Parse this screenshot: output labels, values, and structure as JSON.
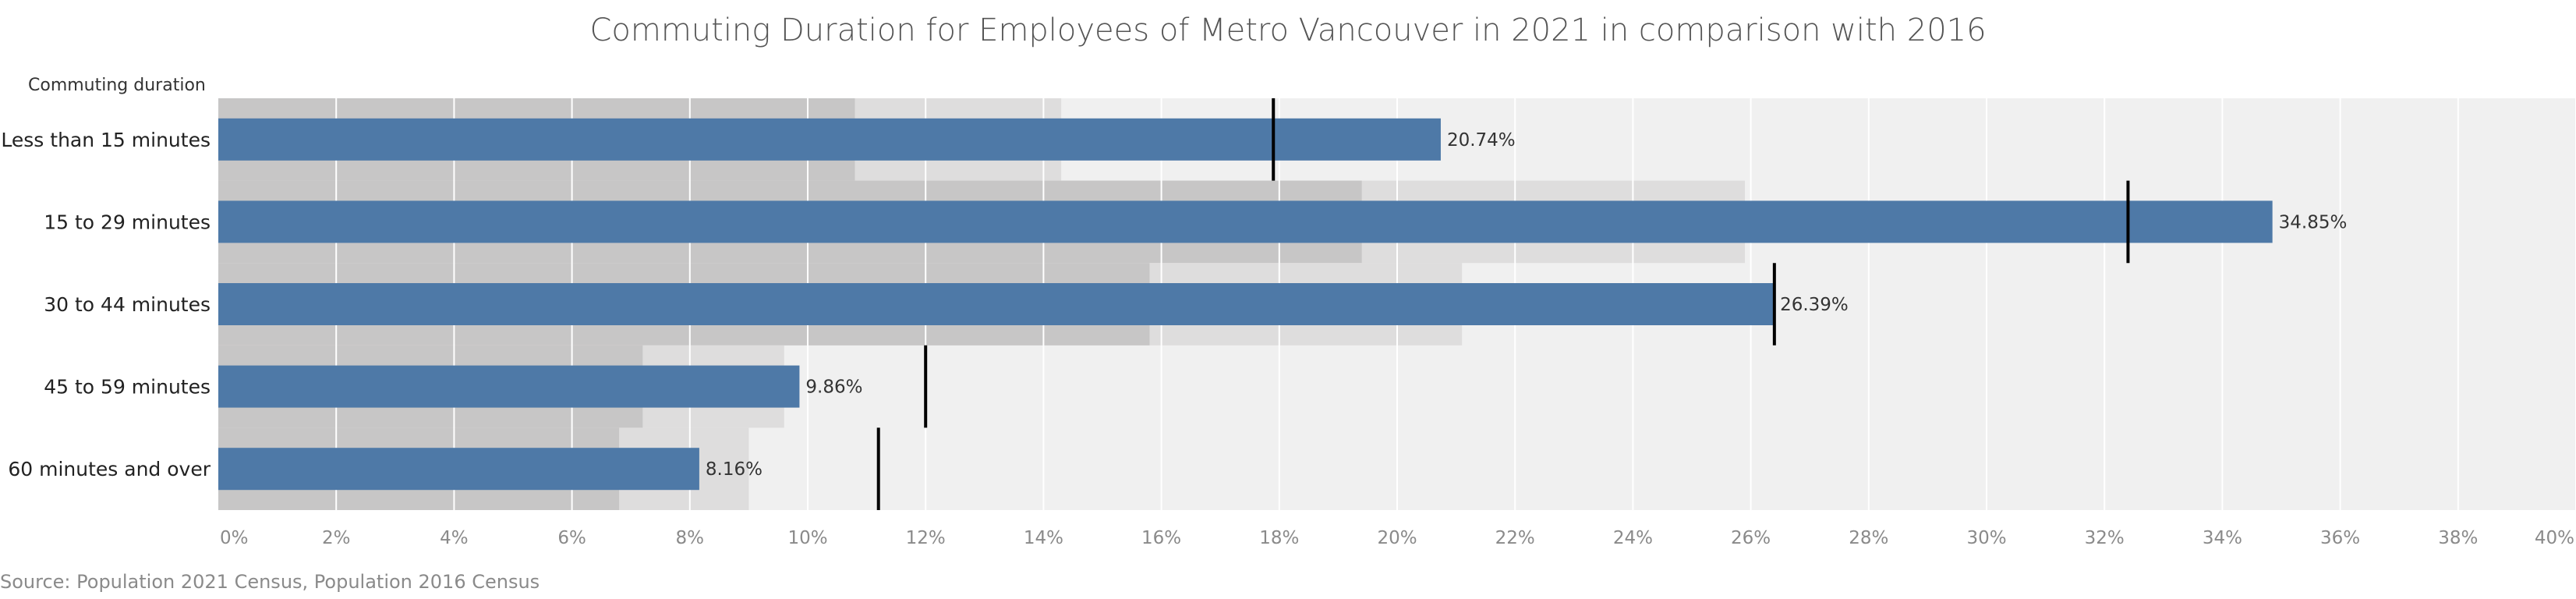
{
  "chart_data": {
    "type": "bar",
    "title": "Commuting Duration for Employees of Metro Vancouver in 2021 in comparison with 2016",
    "ylabel": "Commuting duration",
    "source": "Source: Population 2021 Census, Population 2016 Census",
    "categories": [
      "Less than 15 minutes",
      "15 to 29 minutes",
      "30 to 44 minutes",
      "45 to 59 minutes",
      "60 minutes and over"
    ],
    "series": [
      {
        "name": "2021",
        "values": [
          20.74,
          34.85,
          26.39,
          9.86,
          8.16
        ],
        "labels": [
          "20.74%",
          "34.85%",
          "26.39%",
          "9.86%",
          "8.16%"
        ]
      }
    ],
    "reference_2016": [
      17.9,
      32.4,
      26.4,
      12.0,
      11.2
    ],
    "band_inner": [
      10.8,
      19.4,
      15.8,
      7.2,
      6.8
    ],
    "band_outer": [
      14.3,
      25.9,
      21.1,
      9.6,
      9.0
    ],
    "x_ticks": [
      0,
      2,
      4,
      6,
      8,
      10,
      12,
      14,
      16,
      18,
      20,
      22,
      24,
      26,
      28,
      30,
      32,
      34,
      36,
      38,
      40
    ],
    "x_tick_labels": [
      "0%",
      "2%",
      "4%",
      "6%",
      "8%",
      "10%",
      "12%",
      "14%",
      "16%",
      "18%",
      "20%",
      "22%",
      "24%",
      "26%",
      "28%",
      "30%",
      "32%",
      "34%",
      "36%",
      "38%",
      "40%"
    ],
    "xlim": [
      0,
      40
    ],
    "grid": true,
    "colors": {
      "bar": "#4e79a7",
      "background": "#f0f0f0",
      "band_inner": "#c7c6c6",
      "band_outer": "#dedddd",
      "reference": "#000000",
      "grid": "#ffffff"
    }
  }
}
